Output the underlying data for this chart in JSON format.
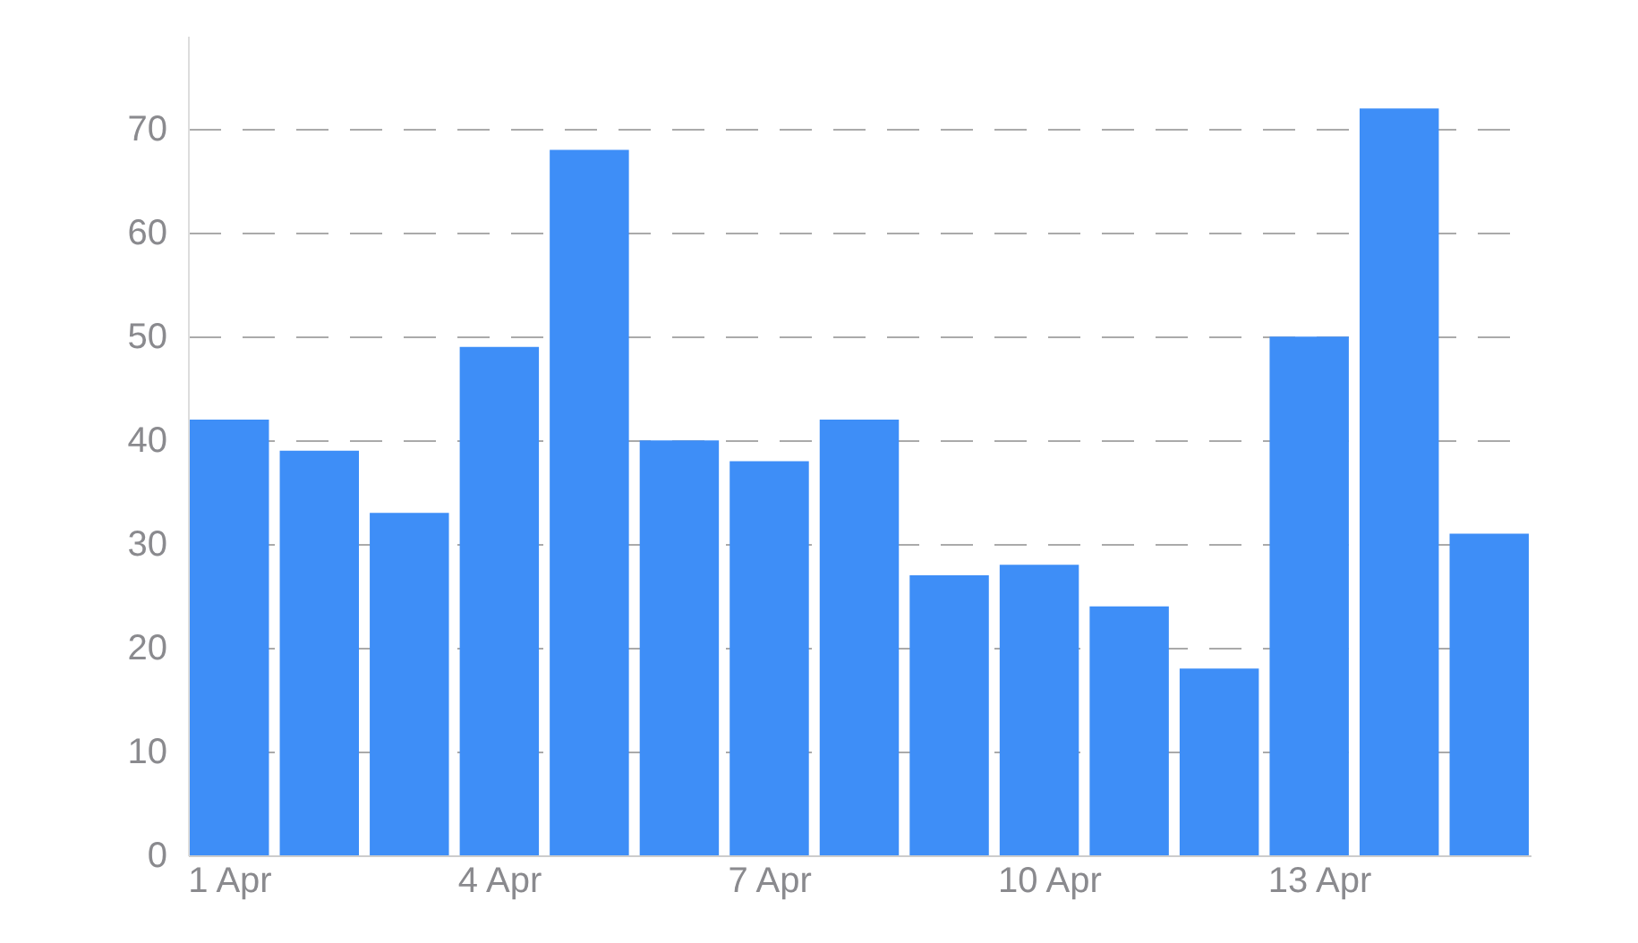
{
  "chart_data": {
    "type": "bar",
    "categories": [
      "1 Apr",
      null,
      null,
      "4 Apr",
      null,
      null,
      "7 Apr",
      null,
      null,
      "10 Apr",
      null,
      null,
      "13 Apr",
      null,
      null
    ],
    "values": [
      42,
      39,
      33,
      49,
      68,
      40,
      38,
      42,
      27,
      28,
      24,
      18,
      50,
      72,
      31
    ],
    "color": "#3e8ef7",
    "ylim": [
      0,
      79
    ],
    "yticks": [
      0,
      10,
      20,
      30,
      40,
      50,
      60,
      70
    ],
    "grid": "y",
    "line_style": "dashed"
  }
}
